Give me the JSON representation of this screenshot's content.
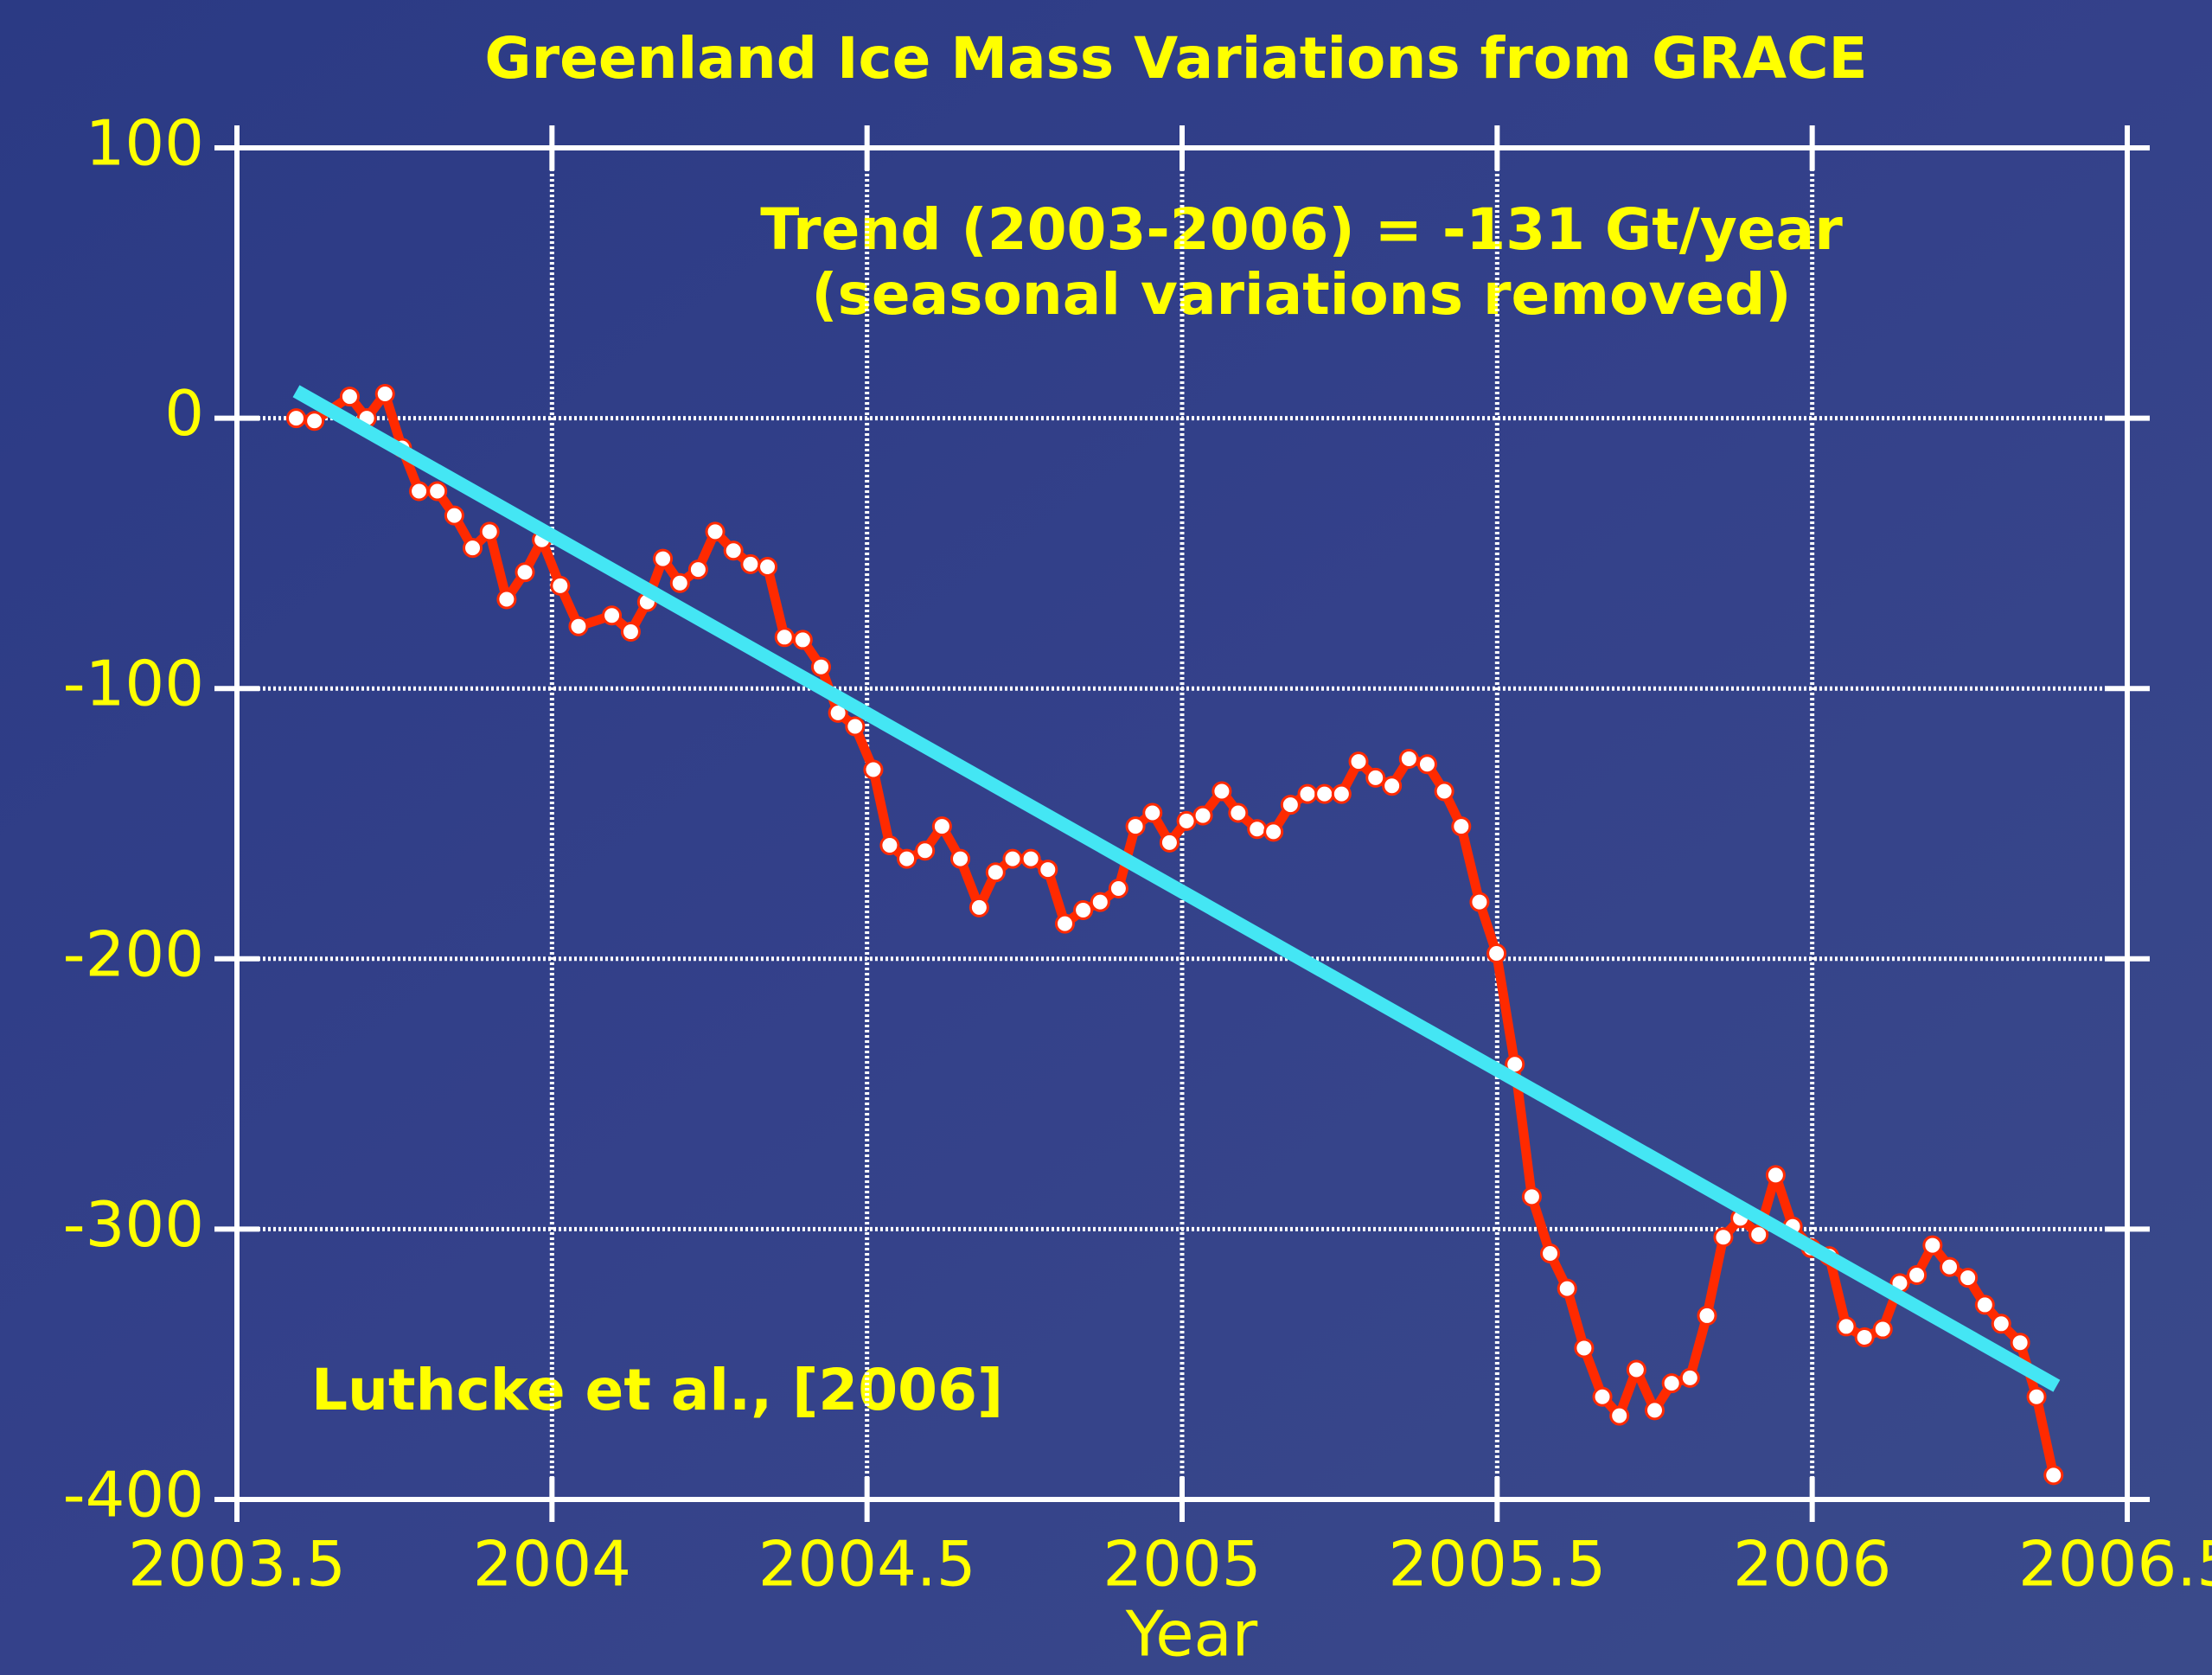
{
  "chart_data": {
    "type": "line",
    "title": "Greenland Ice Mass Variations from GRACE",
    "xlabel": "Year",
    "annotations": [
      "Trend (2003-2006) = -131 Gt/year",
      "(seasonal variations removed)",
      "Luthcke et al., [2006]"
    ],
    "xlim": [
      2003.5,
      2006.5
    ],
    "ylim": [
      -400,
      100
    ],
    "xticks": [
      2003.5,
      2004,
      2004.5,
      2005,
      2005.5,
      2006,
      2006.5
    ],
    "yticks": [
      100,
      0,
      -100,
      -200,
      -300,
      -400
    ],
    "grid": true,
    "series": [
      {
        "color": "#ff2a00",
        "markers": true,
        "x": [
          2003.594,
          2003.623,
          2003.679,
          2003.706,
          2003.735,
          2003.762,
          2003.789,
          2003.818,
          2003.845,
          2003.874,
          2003.901,
          2003.928,
          2003.957,
          2003.984,
          2004.013,
          2004.042,
          2004.095,
          2004.125,
          2004.151,
          2004.176,
          2004.203,
          2004.232,
          2004.259,
          2004.288,
          2004.315,
          2004.342,
          2004.369,
          2004.398,
          2004.427,
          2004.454,
          2004.481,
          2004.51,
          2004.536,
          2004.563,
          2004.592,
          2004.619,
          2004.648,
          2004.678,
          2004.704,
          2004.731,
          2004.76,
          2004.787,
          2004.814,
          2004.843,
          2004.87,
          2004.899,
          2004.926,
          2004.953,
          2004.98,
          2005.007,
          2005.033,
          2005.063,
          2005.089,
          2005.119,
          2005.145,
          2005.172,
          2005.199,
          2005.226,
          2005.253,
          2005.28,
          2005.307,
          2005.333,
          2005.36,
          2005.389,
          2005.416,
          2005.443,
          2005.472,
          2005.499,
          2005.528,
          2005.555,
          2005.584,
          2005.611,
          2005.638,
          2005.667,
          2005.694,
          2005.721,
          2005.75,
          2005.777,
          2005.806,
          2005.833,
          2005.859,
          2005.886,
          2005.915,
          2005.942,
          2005.969,
          2005.998,
          2006.027,
          2006.054,
          2006.083,
          2006.112,
          2006.139,
          2006.166,
          2006.191,
          2006.218,
          2006.247,
          2006.274,
          2006.3,
          2006.33,
          2006.356,
          2006.383
        ],
        "values": [
          0,
          -1,
          8,
          0,
          9,
          -11,
          -27,
          -27,
          -36,
          -48,
          -42,
          -67,
          -57,
          -45,
          -62,
          -77,
          -73,
          -79,
          -68,
          -52,
          -61,
          -56,
          -42,
          -49,
          -54,
          -55,
          -81,
          -82,
          -92,
          -109,
          -114,
          -130,
          -158,
          -163,
          -160,
          -151,
          -163,
          -181,
          -168,
          -163,
          -163,
          -167,
          -187,
          -182,
          -179,
          -174,
          -151,
          -146,
          -157,
          -149,
          -147,
          -138,
          -146,
          -152,
          -153,
          -143,
          -139,
          -139,
          -139,
          -127,
          -133,
          -136,
          -126,
          -128,
          -138,
          -151,
          -179,
          -198,
          -239,
          -288,
          -309,
          -322,
          -344,
          -362,
          -369,
          -352,
          -367,
          -357,
          -355,
          -332,
          -303,
          -296,
          -302,
          -280,
          -299,
          -307,
          -310,
          -336,
          -340,
          -337,
          -320,
          -317,
          -306,
          -314,
          -318,
          -328,
          -335,
          -342,
          -362,
          -391
        ]
      },
      {
        "color": "#44e6f4",
        "markers": false,
        "x": [
          2003.594,
          2006.388
        ],
        "values": [
          10,
          -358
        ]
      }
    ]
  }
}
